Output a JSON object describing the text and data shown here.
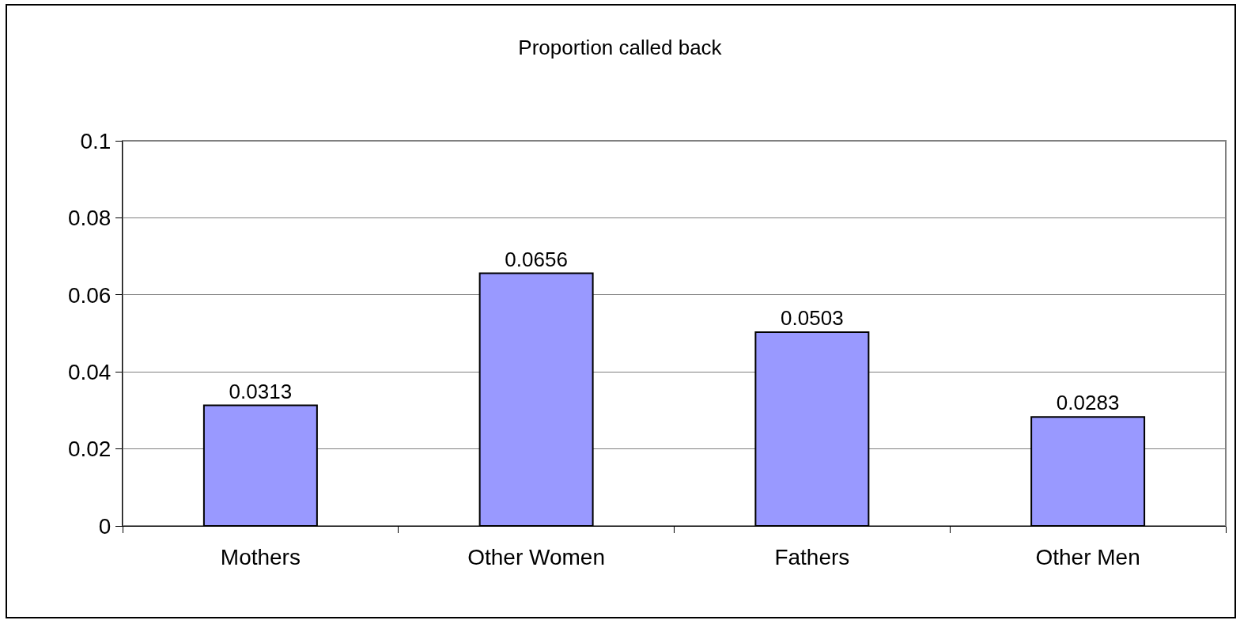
{
  "chart_data": {
    "type": "bar",
    "title": "Proportion called back",
    "categories": [
      "Mothers",
      "Other Women",
      "Fathers",
      "Other Men"
    ],
    "values": [
      0.0313,
      0.0656,
      0.0503,
      0.0283
    ],
    "color": "#9999ff",
    "ylim": [
      0,
      0.1
    ],
    "yticks": [
      0,
      0.02,
      0.04,
      0.06,
      0.08,
      0.1
    ],
    "grid": "y",
    "data_labels": true
  }
}
